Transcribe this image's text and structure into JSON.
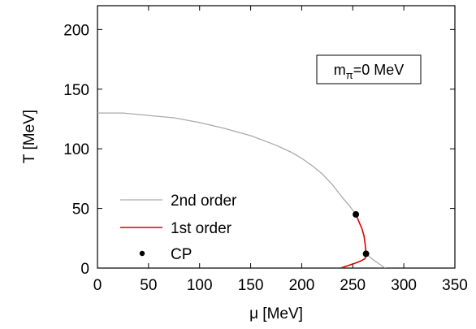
{
  "chart_data": {
    "type": "line",
    "xlabel": "μ [MeV]",
    "ylabel": "T [MeV]",
    "xlim": [
      0,
      350
    ],
    "ylim": [
      0,
      220
    ],
    "xticks": [
      0,
      50,
      100,
      150,
      200,
      250,
      300,
      350
    ],
    "yticks": [
      0,
      50,
      100,
      150,
      200
    ],
    "grid": false,
    "legend_position": "bottom-left",
    "annotation": {
      "base": "m",
      "subscript": "π",
      "suffix": "=0 MeV"
    },
    "series": [
      {
        "name": "2nd order",
        "kind": "line",
        "color": "#aaaaaa",
        "x": [
          0,
          25,
          50,
          75,
          100,
          125,
          150,
          175,
          190,
          200,
          210,
          220,
          230,
          240,
          247,
          253
        ],
        "y": [
          130,
          130,
          128,
          126,
          122,
          117,
          111,
          103,
          97,
          92,
          86,
          79,
          70,
          59,
          52,
          45
        ]
      },
      {
        "name": "",
        "kind": "line",
        "color": "#aaaaaa",
        "x": [
          263,
          267,
          270,
          275,
          280,
          282
        ],
        "y": [
          12,
          9,
          7,
          4,
          1,
          0
        ]
      },
      {
        "name": "1st order",
        "kind": "line",
        "color": "#e00000",
        "x": [
          253,
          256,
          259,
          261,
          262,
          263,
          262,
          258,
          252,
          245,
          238
        ],
        "y": [
          45,
          39,
          33,
          27,
          21,
          12,
          8,
          6,
          4,
          2,
          0
        ]
      },
      {
        "name": "CP",
        "kind": "scatter",
        "color": "#000000",
        "x": [
          253,
          263
        ],
        "y": [
          45,
          12
        ]
      }
    ]
  }
}
